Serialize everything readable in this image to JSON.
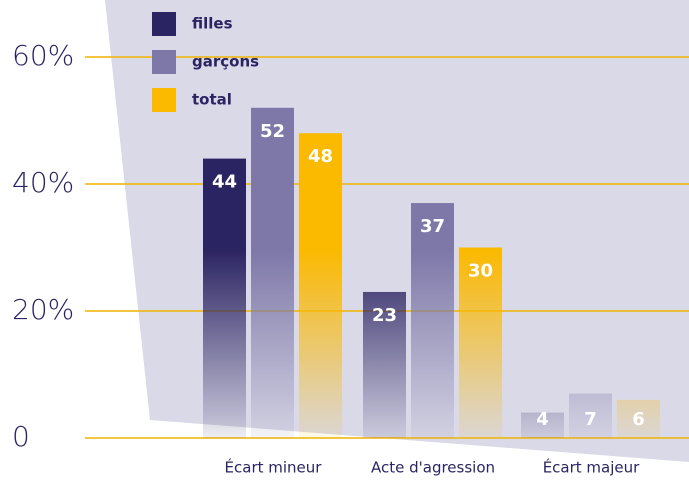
{
  "chart_data": {
    "type": "bar",
    "categories": [
      "Écart mineur",
      "Acte d'agression",
      "Écart majeur"
    ],
    "series": [
      {
        "name": "filles",
        "color": "#2b2462",
        "values": [
          44,
          23,
          4
        ]
      },
      {
        "name": "garçons",
        "color": "#7d78a8",
        "values": [
          52,
          37,
          7
        ]
      },
      {
        "name": "total",
        "color": "#fbb900",
        "values": [
          48,
          30,
          6
        ]
      }
    ],
    "ylim": [
      0,
      60
    ],
    "yticks": [
      0,
      {
        "value": 20,
        "label": "20%"
      },
      {
        "value": 40,
        "label": "40%"
      },
      {
        "value": 60,
        "label": "60%"
      }
    ],
    "grid": true,
    "legend": "top-left"
  }
}
